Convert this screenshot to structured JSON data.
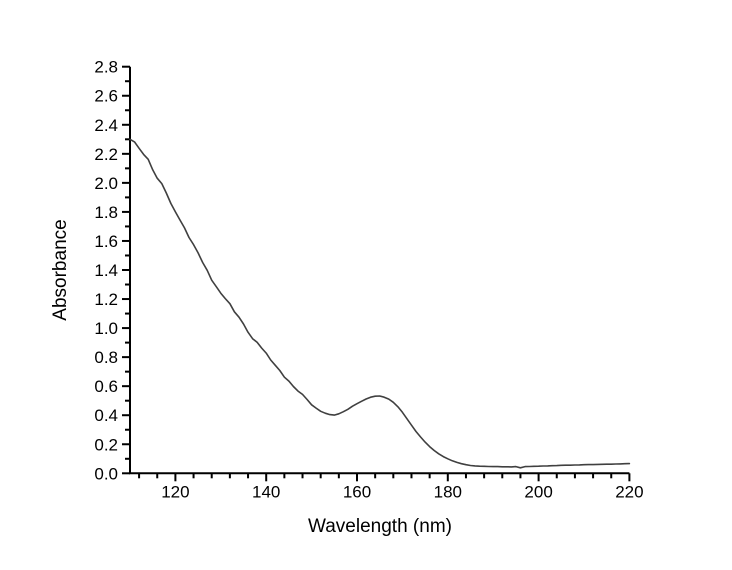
{
  "figure": {
    "background": "#ffffff",
    "axis_color": "#000000",
    "text_color": "#000000"
  },
  "chart_data": {
    "type": "line",
    "title": "",
    "xlabel": "Wavelength (nm)",
    "ylabel": "Absorbance",
    "xlim": [
      110,
      220
    ],
    "ylim": [
      0.0,
      2.8
    ],
    "grid": false,
    "legend": null,
    "x_axis": {
      "title": "Wavelength (nm)",
      "range": [
        110,
        220
      ],
      "major_tick_values": [
        120,
        140,
        160,
        180,
        200,
        220
      ],
      "major_tick_labels": [
        "120",
        "140",
        "160",
        "180",
        "200",
        "220"
      ],
      "minor_tick_values": [
        112,
        116,
        124,
        128,
        132,
        136,
        144,
        148,
        152,
        156,
        164,
        168,
        172,
        176,
        184,
        188,
        192,
        196,
        204,
        208,
        212,
        216
      ]
    },
    "y_axis": {
      "title": "Absorbance",
      "range": [
        0.0,
        2.8
      ],
      "major_tick_values": [
        0.0,
        0.2,
        0.4,
        0.6,
        0.8,
        1.0,
        1.2,
        1.4,
        1.6,
        1.8,
        2.0,
        2.2,
        2.4,
        2.6,
        2.8
      ],
      "major_tick_labels": [
        "0.0",
        "0.2",
        "0.4",
        "0.6",
        "0.8",
        "1.0",
        "1.2",
        "1.4",
        "1.6",
        "1.8",
        "2.0",
        "2.2",
        "2.4",
        "2.6",
        "2.8"
      ],
      "minor_tick_values": [
        0.1,
        0.3,
        0.5,
        0.7,
        0.9,
        1.1,
        1.3,
        1.5,
        1.7,
        1.9,
        2.1,
        2.3,
        2.5,
        2.7
      ]
    },
    "series": [
      {
        "name": "absorbance-spectrum",
        "color": "#404040",
        "line_width": 1.6,
        "x": [
          110,
          111,
          112,
          113,
          114,
          115,
          116,
          117,
          118,
          119,
          120,
          121,
          122,
          123,
          124,
          125,
          126,
          127,
          128,
          129,
          130,
          131,
          132,
          133,
          134,
          135,
          136,
          137,
          138,
          139,
          140,
          141,
          142,
          143,
          144,
          145,
          146,
          147,
          148,
          149,
          150,
          151,
          152,
          153,
          154,
          155,
          156,
          157,
          158,
          159,
          160,
          161,
          162,
          163,
          164,
          165,
          166,
          167,
          168,
          169,
          170,
          171,
          172,
          173,
          174,
          175,
          176,
          177,
          178,
          179,
          180,
          181,
          182,
          183,
          184,
          185,
          186,
          187,
          188,
          189,
          190,
          191,
          192,
          193,
          194,
          195,
          196,
          197,
          198,
          199,
          200,
          201,
          202,
          203,
          204,
          205,
          206,
          207,
          208,
          209,
          210,
          211,
          212,
          213,
          214,
          215,
          216,
          217,
          218,
          219,
          220
        ],
        "y": [
          2.3,
          2.282,
          2.238,
          2.196,
          2.162,
          2.09,
          2.032,
          1.995,
          1.93,
          1.858,
          1.8,
          1.745,
          1.69,
          1.624,
          1.574,
          1.518,
          1.452,
          1.398,
          1.33,
          1.285,
          1.24,
          1.203,
          1.168,
          1.112,
          1.075,
          1.028,
          0.972,
          0.927,
          0.902,
          0.862,
          0.828,
          0.78,
          0.744,
          0.708,
          0.662,
          0.635,
          0.598,
          0.566,
          0.543,
          0.508,
          0.472,
          0.449,
          0.427,
          0.414,
          0.404,
          0.401,
          0.41,
          0.424,
          0.441,
          0.462,
          0.479,
          0.496,
          0.512,
          0.524,
          0.531,
          0.532,
          0.524,
          0.511,
          0.489,
          0.458,
          0.42,
          0.376,
          0.331,
          0.288,
          0.25,
          0.215,
          0.184,
          0.157,
          0.134,
          0.115,
          0.1,
          0.086,
          0.075,
          0.066,
          0.059,
          0.054,
          0.051,
          0.049,
          0.048,
          0.047,
          0.046,
          0.046,
          0.045,
          0.045,
          0.044,
          0.046,
          0.038,
          0.046,
          0.047,
          0.048,
          0.049,
          0.05,
          0.051,
          0.052,
          0.053,
          0.055,
          0.056,
          0.056,
          0.057,
          0.058,
          0.059,
          0.06,
          0.06,
          0.061,
          0.062,
          0.063,
          0.063,
          0.064,
          0.065,
          0.066,
          0.067
        ]
      }
    ]
  }
}
